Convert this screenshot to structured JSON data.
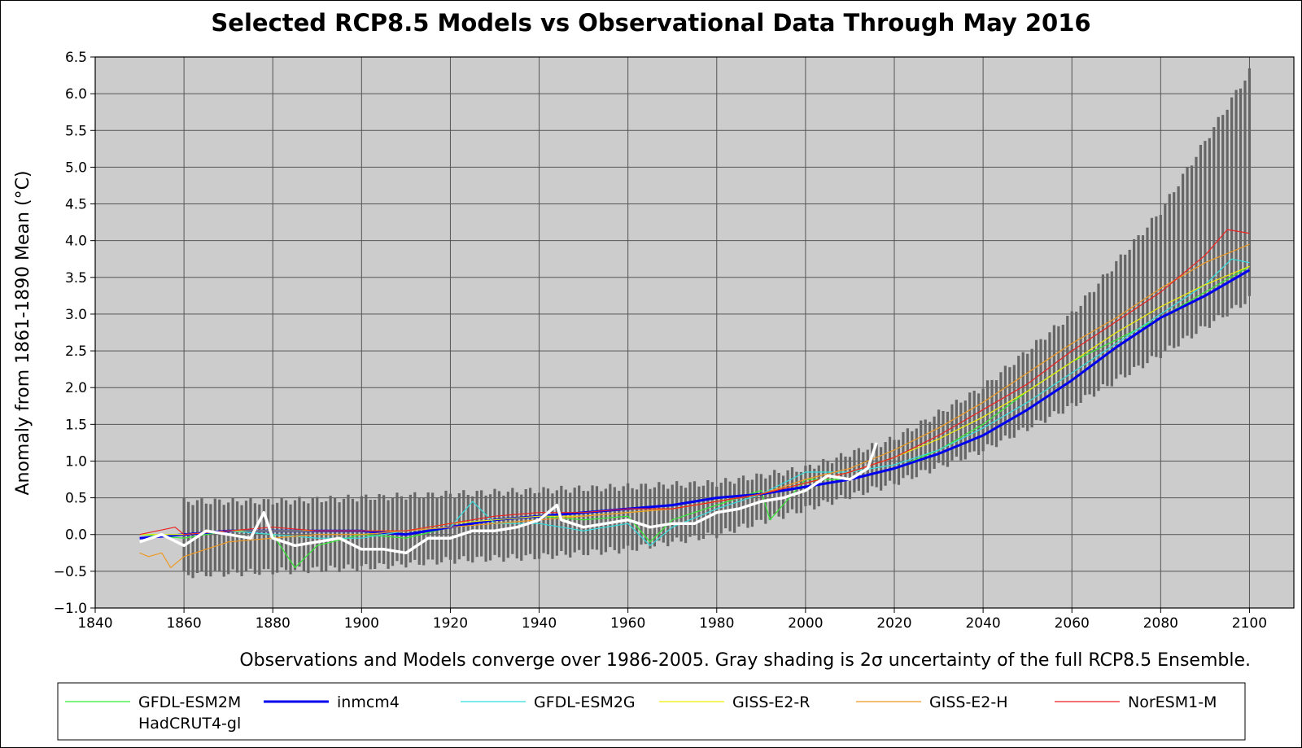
{
  "chart_data": {
    "type": "line",
    "title": "Selected RCP8.5 Models vs Observational Data Through May 2016",
    "xlabel": "",
    "ylabel": "Anomaly from 1861-1890 Mean (°C)",
    "caption": "Observations and Models converge over 1986-2005. Gray shading is 2σ uncertainty of the full RCP8.5 Ensemble.",
    "xlim": [
      1840,
      2110
    ],
    "ylim": [
      -1.0,
      6.5
    ],
    "grid": true,
    "legend_position": "bottom",
    "x_ticks": [
      1840,
      1860,
      1880,
      1900,
      1920,
      1940,
      1960,
      1980,
      2000,
      2020,
      2040,
      2060,
      2080,
      2100
    ],
    "y_ticks": [
      -1.0,
      -0.5,
      0.0,
      0.5,
      1.0,
      1.5,
      2.0,
      2.5,
      3.0,
      3.5,
      4.0,
      4.5,
      5.0,
      5.5,
      6.0,
      6.5
    ],
    "y_tick_labels": [
      "−1.0",
      "−0.5",
      "0.0",
      "0.5",
      "1.0",
      "1.5",
      "2.0",
      "2.5",
      "3.0",
      "3.5",
      "4.0",
      "4.5",
      "5.0",
      "5.5",
      "6.0",
      "6.5"
    ],
    "uncertainty_band": {
      "name": "2σ uncertainty of the full RCP8.5 Ensemble",
      "color": "#666666",
      "x": [
        1860,
        1880,
        1900,
        1920,
        1940,
        1960,
        1980,
        2000,
        2020,
        2040,
        2060,
        2080,
        2100
      ],
      "lower": [
        -0.55,
        -0.5,
        -0.45,
        -0.35,
        -0.3,
        -0.2,
        0.0,
        0.35,
        0.7,
        1.15,
        1.75,
        2.45,
        3.2
      ],
      "upper": [
        0.45,
        0.45,
        0.5,
        0.55,
        0.6,
        0.65,
        0.7,
        0.9,
        1.3,
        2.0,
        3.0,
        4.4,
        6.3
      ]
    },
    "series": [
      {
        "name": "GFDL-ESM2M",
        "color": "#33ee33",
        "width": 1.2,
        "x": [
          1850,
          1860,
          1870,
          1880,
          1885,
          1890,
          1900,
          1910,
          1920,
          1930,
          1940,
          1950,
          1960,
          1965,
          1970,
          1980,
          1990,
          1992,
          2000,
          2010,
          2020,
          2030,
          2040,
          2050,
          2060,
          2070,
          2080,
          2090,
          2100
        ],
        "y": [
          0.0,
          -0.05,
          0.05,
          0.0,
          -0.45,
          -0.15,
          0.0,
          -0.05,
          0.1,
          0.2,
          0.25,
          0.2,
          0.25,
          -0.1,
          0.2,
          0.4,
          0.6,
          0.2,
          0.75,
          0.75,
          0.9,
          1.15,
          1.5,
          1.95,
          2.35,
          2.65,
          2.95,
          3.3,
          3.65
        ]
      },
      {
        "name": "inmcm4",
        "color": "#0000ee",
        "width": 3,
        "x": [
          1850,
          1860,
          1870,
          1880,
          1890,
          1900,
          1910,
          1920,
          1930,
          1940,
          1950,
          1960,
          1970,
          1980,
          1990,
          2000,
          2010,
          2020,
          2030,
          2040,
          2050,
          2060,
          2070,
          2080,
          2090,
          2100
        ],
        "y": [
          -0.05,
          0.0,
          0.05,
          0.05,
          0.05,
          0.05,
          0.0,
          0.1,
          0.2,
          0.25,
          0.3,
          0.35,
          0.4,
          0.5,
          0.55,
          0.65,
          0.75,
          0.9,
          1.1,
          1.35,
          1.7,
          2.1,
          2.55,
          2.95,
          3.25,
          3.6
        ]
      },
      {
        "name": "GFDL-ESM2G",
        "color": "#33dddd",
        "width": 1.2,
        "x": [
          1850,
          1860,
          1870,
          1880,
          1890,
          1900,
          1910,
          1920,
          1925,
          1930,
          1940,
          1950,
          1960,
          1965,
          1970,
          1980,
          1990,
          2000,
          2010,
          2020,
          2030,
          2040,
          2050,
          2060,
          2070,
          2080,
          2090,
          2096,
          2100
        ],
        "y": [
          0.0,
          0.0,
          0.05,
          0.0,
          -0.05,
          -0.05,
          0.05,
          0.1,
          0.45,
          0.15,
          0.15,
          0.05,
          0.15,
          -0.15,
          0.1,
          0.35,
          0.55,
          0.85,
          0.85,
          0.95,
          1.15,
          1.45,
          1.8,
          2.2,
          2.6,
          3.0,
          3.4,
          3.75,
          3.7
        ]
      },
      {
        "name": "GISS-E2-R",
        "color": "#eeee00",
        "width": 1.2,
        "x": [
          1850,
          1860,
          1870,
          1880,
          1890,
          1900,
          1910,
          1920,
          1930,
          1940,
          1950,
          1960,
          1970,
          1980,
          1990,
          2000,
          2010,
          2020,
          2030,
          2040,
          2050,
          2060,
          2070,
          2080,
          2090,
          2100
        ],
        "y": [
          0.0,
          0.0,
          0.05,
          0.05,
          0.05,
          0.05,
          0.05,
          0.15,
          0.2,
          0.25,
          0.25,
          0.3,
          0.35,
          0.45,
          0.55,
          0.7,
          0.85,
          1.05,
          1.3,
          1.6,
          1.95,
          2.35,
          2.75,
          3.1,
          3.4,
          3.65
        ]
      },
      {
        "name": "GISS-E2-H",
        "color": "#ee9922",
        "width": 1.2,
        "x": [
          1850,
          1852,
          1855,
          1857,
          1860,
          1870,
          1880,
          1890,
          1900,
          1910,
          1920,
          1930,
          1940,
          1950,
          1960,
          1970,
          1980,
          1990,
          2000,
          2010,
          2020,
          2030,
          2040,
          2050,
          2060,
          2070,
          2080,
          2090,
          2100
        ],
        "y": [
          -0.25,
          -0.3,
          -0.25,
          -0.45,
          -0.3,
          -0.1,
          -0.05,
          0.0,
          0.0,
          0.05,
          0.1,
          0.15,
          0.2,
          0.25,
          0.3,
          0.35,
          0.45,
          0.55,
          0.75,
          0.9,
          1.15,
          1.45,
          1.8,
          2.2,
          2.6,
          2.95,
          3.35,
          3.7,
          3.95
        ]
      },
      {
        "name": "NorESM1-M",
        "color": "#ee2222",
        "width": 1.2,
        "x": [
          1850,
          1858,
          1860,
          1870,
          1880,
          1890,
          1900,
          1910,
          1920,
          1930,
          1940,
          1950,
          1960,
          1970,
          1980,
          1990,
          2000,
          2010,
          2020,
          2030,
          2040,
          2050,
          2060,
          2070,
          2080,
          2090,
          2095,
          2100
        ],
        "y": [
          0.0,
          0.1,
          0.0,
          0.05,
          0.1,
          0.05,
          0.05,
          0.05,
          0.15,
          0.25,
          0.3,
          0.3,
          0.35,
          0.35,
          0.45,
          0.55,
          0.7,
          0.85,
          1.05,
          1.35,
          1.7,
          2.05,
          2.5,
          2.9,
          3.3,
          3.8,
          4.15,
          4.1
        ]
      },
      {
        "name": "HadCRUT4-gl",
        "color": "#ffffff",
        "width": 3.5,
        "x": [
          1850,
          1855,
          1860,
          1865,
          1870,
          1875,
          1878,
          1880,
          1885,
          1890,
          1895,
          1900,
          1905,
          1910,
          1915,
          1920,
          1925,
          1930,
          1935,
          1940,
          1944,
          1945,
          1950,
          1955,
          1960,
          1965,
          1970,
          1975,
          1980,
          1985,
          1990,
          1995,
          2000,
          2005,
          2010,
          2014,
          2016
        ],
        "y": [
          -0.1,
          0.0,
          -0.15,
          0.05,
          0.0,
          -0.05,
          0.3,
          -0.05,
          -0.15,
          -0.1,
          -0.05,
          -0.2,
          -0.2,
          -0.25,
          -0.05,
          -0.05,
          0.05,
          0.05,
          0.1,
          0.2,
          0.4,
          0.2,
          0.1,
          0.15,
          0.2,
          0.1,
          0.15,
          0.15,
          0.3,
          0.35,
          0.45,
          0.5,
          0.6,
          0.8,
          0.75,
          0.9,
          1.25
        ]
      }
    ]
  }
}
